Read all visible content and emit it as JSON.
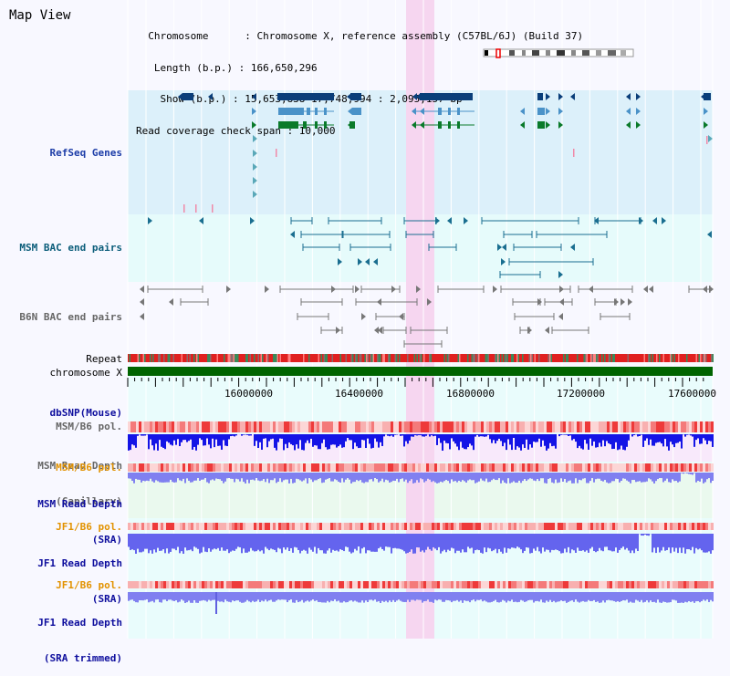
{
  "header": {
    "title": "Map View",
    "info_lines": [
      "  Chromosome      : Chromosome X, reference assembly (C57BL/6J) (Build 37)",
      "   Length (b.p.) : 166,650,296",
      "    Show (b.p.) : 15,653,838-17,748,994 : 2,095,157 bp",
      "Read coverage check span : 10,000"
    ]
  },
  "tracks": {
    "refseq": "RefSeq Genes",
    "msm_bac": "MSM BAC end pairs",
    "b6n_bac": "B6N BAC end pairs",
    "repeat": "Repeat",
    "chromosome": "chromosome X",
    "dbsnp": "dbSNP(Mouse)",
    "msm_pol1": "MSM/B6 pol.",
    "msm_depth_cap_1": "MSM Read Depth",
    "msm_depth_cap_2": "(Capillary)",
    "msm_pol2": "MSM/B6 pol.",
    "msm_depth_sra_1": "MSM Read Depth",
    "msm_depth_sra_2": "(SRA)",
    "jf1_pol1": "JF1/B6 pol.",
    "jf1_depth_sra_1": "JF1 Read Depth",
    "jf1_depth_sra_2": "(SRA)",
    "jf1_pol2": "JF1/B6 pol.",
    "jf1_depth_trim_1": "JF1 Read Depth",
    "jf1_depth_trim_2": "(SRA trimmed)"
  },
  "axis": {
    "ticks": [
      "16000000",
      "16400000",
      "16800000",
      "17200000",
      "17600000"
    ]
  },
  "colors": {
    "refseq_bg": "#dcf0fa",
    "bac_bg": "#e6fafa",
    "highlight": "#f6d6f0",
    "chromosome_bar": "#006400",
    "depth_capillary": "#1414e6",
    "depth_sra": "#8080f0",
    "pol_red": "#ee3a3a"
  }
}
